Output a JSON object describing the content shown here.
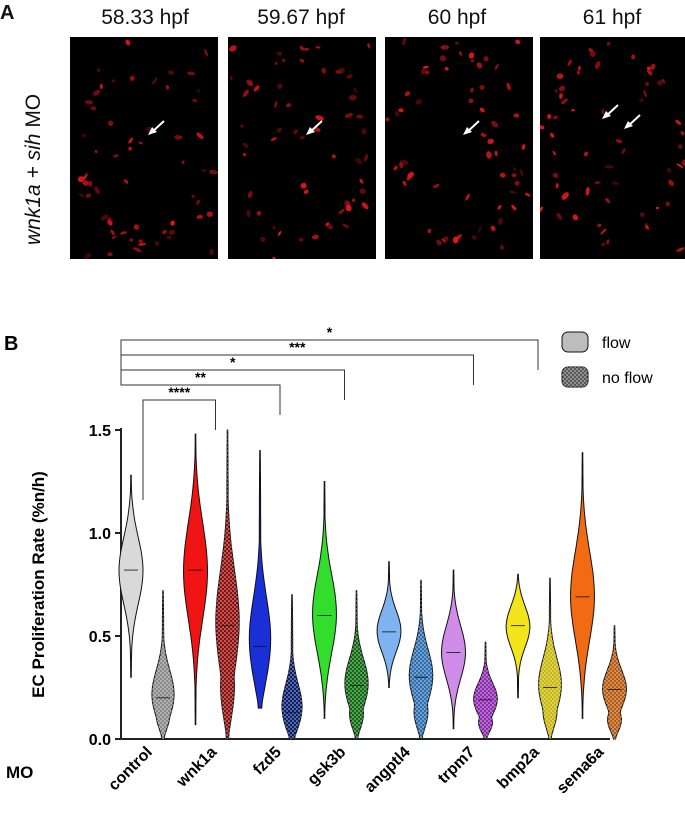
{
  "panel_a": {
    "letter": "A",
    "row_label_italic": "wnk1a + sih",
    "row_label_suffix": " MO",
    "timepoints": [
      {
        "label": "58.33 hpf"
      },
      {
        "label": "59.67 hpf"
      },
      {
        "label": "60 hpf"
      },
      {
        "label": "61 hpf"
      }
    ],
    "cell_color": "#e0161b",
    "arrow_color": "#ffffff"
  },
  "panel_b": {
    "letter": "B",
    "legend": [
      {
        "label": "flow",
        "pattern": "solid"
      },
      {
        "label": "no flow",
        "pattern": "dots"
      }
    ],
    "significance": [
      {
        "from": "control",
        "to": "bmp2a",
        "label": "*"
      },
      {
        "from": "control",
        "to": "trpm7",
        "label": "***"
      },
      {
        "from": "control",
        "to": "gsk3b",
        "label": "*"
      },
      {
        "from": "control",
        "to": "fzd5",
        "label": "**"
      },
      {
        "from": "control_noflow",
        "to": "wnk1a",
        "label": "****"
      }
    ]
  },
  "chart_data": {
    "type": "violin",
    "ylabel": "EC Proliferation Rate (%n/h)",
    "xlabel": "MO",
    "ylim": [
      0,
      1.5
    ],
    "yticks": [
      "0.0",
      "0.5",
      "1.0",
      "1.5"
    ],
    "categories": [
      "control",
      "wnk1a",
      "fzd5",
      "gsk3b",
      "angptl4",
      "trpm7",
      "bmp2a",
      "sema6a"
    ],
    "series": [
      {
        "name": "flow",
        "colors": [
          "#d9d9d9",
          "#f01414",
          "#1a2fd6",
          "#33dd2b",
          "#7fb3f0",
          "#cf8ce8",
          "#f2e51c",
          "#f26a12"
        ],
        "min": [
          0.3,
          0.07,
          0.15,
          0.1,
          0.25,
          0.05,
          0.2,
          0.1
        ],
        "max": [
          1.28,
          1.48,
          1.4,
          1.25,
          0.86,
          0.82,
          0.8,
          1.39
        ],
        "median": [
          0.82,
          0.82,
          0.45,
          0.6,
          0.52,
          0.42,
          0.55,
          0.69
        ]
      },
      {
        "name": "no flow",
        "colors": [
          "#8a8a8a",
          "#8e0e0e",
          "#0a1f6e",
          "#0f6b0f",
          "#2e6fb0",
          "#8e2bb0",
          "#c9b80e",
          "#b85a10"
        ],
        "min": [
          0.0,
          0.0,
          0.0,
          0.0,
          0.0,
          0.0,
          0.0,
          0.0
        ],
        "max": [
          0.72,
          1.5,
          0.7,
          0.72,
          0.77,
          0.47,
          0.78,
          0.55
        ],
        "median": [
          0.2,
          0.55,
          0.13,
          0.26,
          0.3,
          0.19,
          0.25,
          0.24
        ]
      }
    ]
  }
}
